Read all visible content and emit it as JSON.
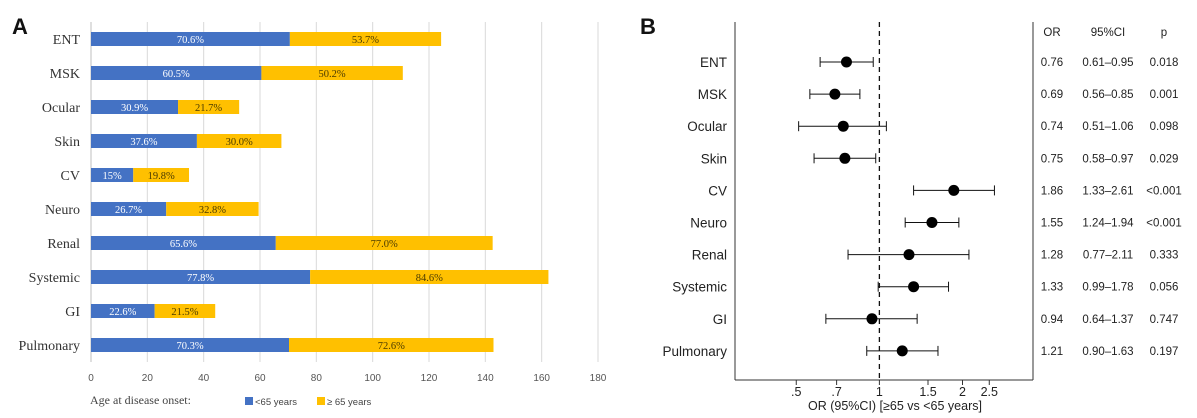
{
  "colors": {
    "under65": "#4472C4",
    "over65": "#FFC000",
    "grid": "#d9d9d9",
    "marker": "#000000"
  },
  "panel_a_letter": "A",
  "panel_b_letter": "B",
  "chart_data": [
    {
      "type": "bar",
      "orientation": "horizontal",
      "stacked": true,
      "categories": [
        "ENT",
        "MSK",
        "Ocular",
        "Skin",
        "CV",
        "Neuro",
        "Renal",
        "Systemic",
        "GI",
        "Pulmonary"
      ],
      "series": [
        {
          "name": "<65 years",
          "values": [
            70.6,
            60.5,
            30.9,
            37.6,
            15,
            26.7,
            65.6,
            77.8,
            22.6,
            70.3
          ],
          "labels": [
            "70.6%",
            "60.5%",
            "30.9%",
            "37.6%",
            "15%",
            "26.7%",
            "65.6%",
            "77.8%",
            "22.6%",
            "70.3%"
          ]
        },
        {
          "name": "≥ 65 years",
          "values": [
            53.7,
            50.2,
            21.7,
            30.0,
            19.8,
            32.8,
            77.0,
            84.6,
            21.5,
            72.6
          ],
          "labels": [
            "53.7%",
            "50.2%",
            "21.7%",
            "30.0%",
            "19.8%",
            "32.8%",
            "77.0%",
            "84.6%",
            "21.5%",
            "72.6%"
          ]
        }
      ],
      "xlim": [
        0,
        180
      ],
      "xticks": [
        "0",
        "20",
        "40",
        "60",
        "80",
        "100",
        "120",
        "140",
        "160",
        "180"
      ],
      "grid": true,
      "legend_title": "Age at disease onset:",
      "legend_position": "bottom"
    },
    {
      "type": "scatter",
      "subtype": "forest",
      "categories": [
        "ENT",
        "MSK",
        "Ocular",
        "Skin",
        "CV",
        "Neuro",
        "Renal",
        "Systemic",
        "GI",
        "Pulmonary"
      ],
      "or": [
        0.76,
        0.69,
        0.74,
        0.75,
        1.86,
        1.55,
        1.28,
        1.33,
        0.94,
        1.21
      ],
      "ci_low": [
        0.61,
        0.56,
        0.51,
        0.58,
        1.33,
        1.24,
        0.77,
        0.99,
        0.64,
        0.9
      ],
      "ci_high": [
        0.95,
        0.85,
        1.06,
        0.97,
        2.61,
        1.94,
        2.11,
        1.78,
        1.37,
        1.63
      ],
      "x_scale": "log",
      "xlim": [
        0.3,
        3.6
      ],
      "xticks": [
        {
          "value": 0.5,
          "label": ".5"
        },
        {
          "value": 0.7,
          "label": ".7"
        },
        {
          "value": 1,
          "label": "1"
        },
        {
          "value": 1.5,
          "label": "1.5"
        },
        {
          "value": 2,
          "label": "2"
        },
        {
          "value": 2.5,
          "label": "2.5"
        }
      ],
      "reference_line": 1,
      "xlabel": "OR (95%CI) [≥65 vs <65 years]",
      "table_headers": [
        "OR",
        "95%CI",
        "p"
      ],
      "table_rows": [
        [
          "0.76",
          "0.61–0.95",
          "0.018"
        ],
        [
          "0.69",
          "0.56–0.85",
          "0.001"
        ],
        [
          "0.74",
          "0.51–1.06",
          "0.098"
        ],
        [
          "0.75",
          "0.58–0.97",
          "0.029"
        ],
        [
          "1.86",
          "1.33–2.61",
          "<0.001"
        ],
        [
          "1.55",
          "1.24–1.94",
          "<0.001"
        ],
        [
          "1.28",
          "0.77–2.11",
          "0.333"
        ],
        [
          "1.33",
          "0.99–1.78",
          "0.056"
        ],
        [
          "0.94",
          "0.64–1.37",
          "0.747"
        ],
        [
          "1.21",
          "0.90–1.63",
          "0.197"
        ]
      ]
    }
  ]
}
